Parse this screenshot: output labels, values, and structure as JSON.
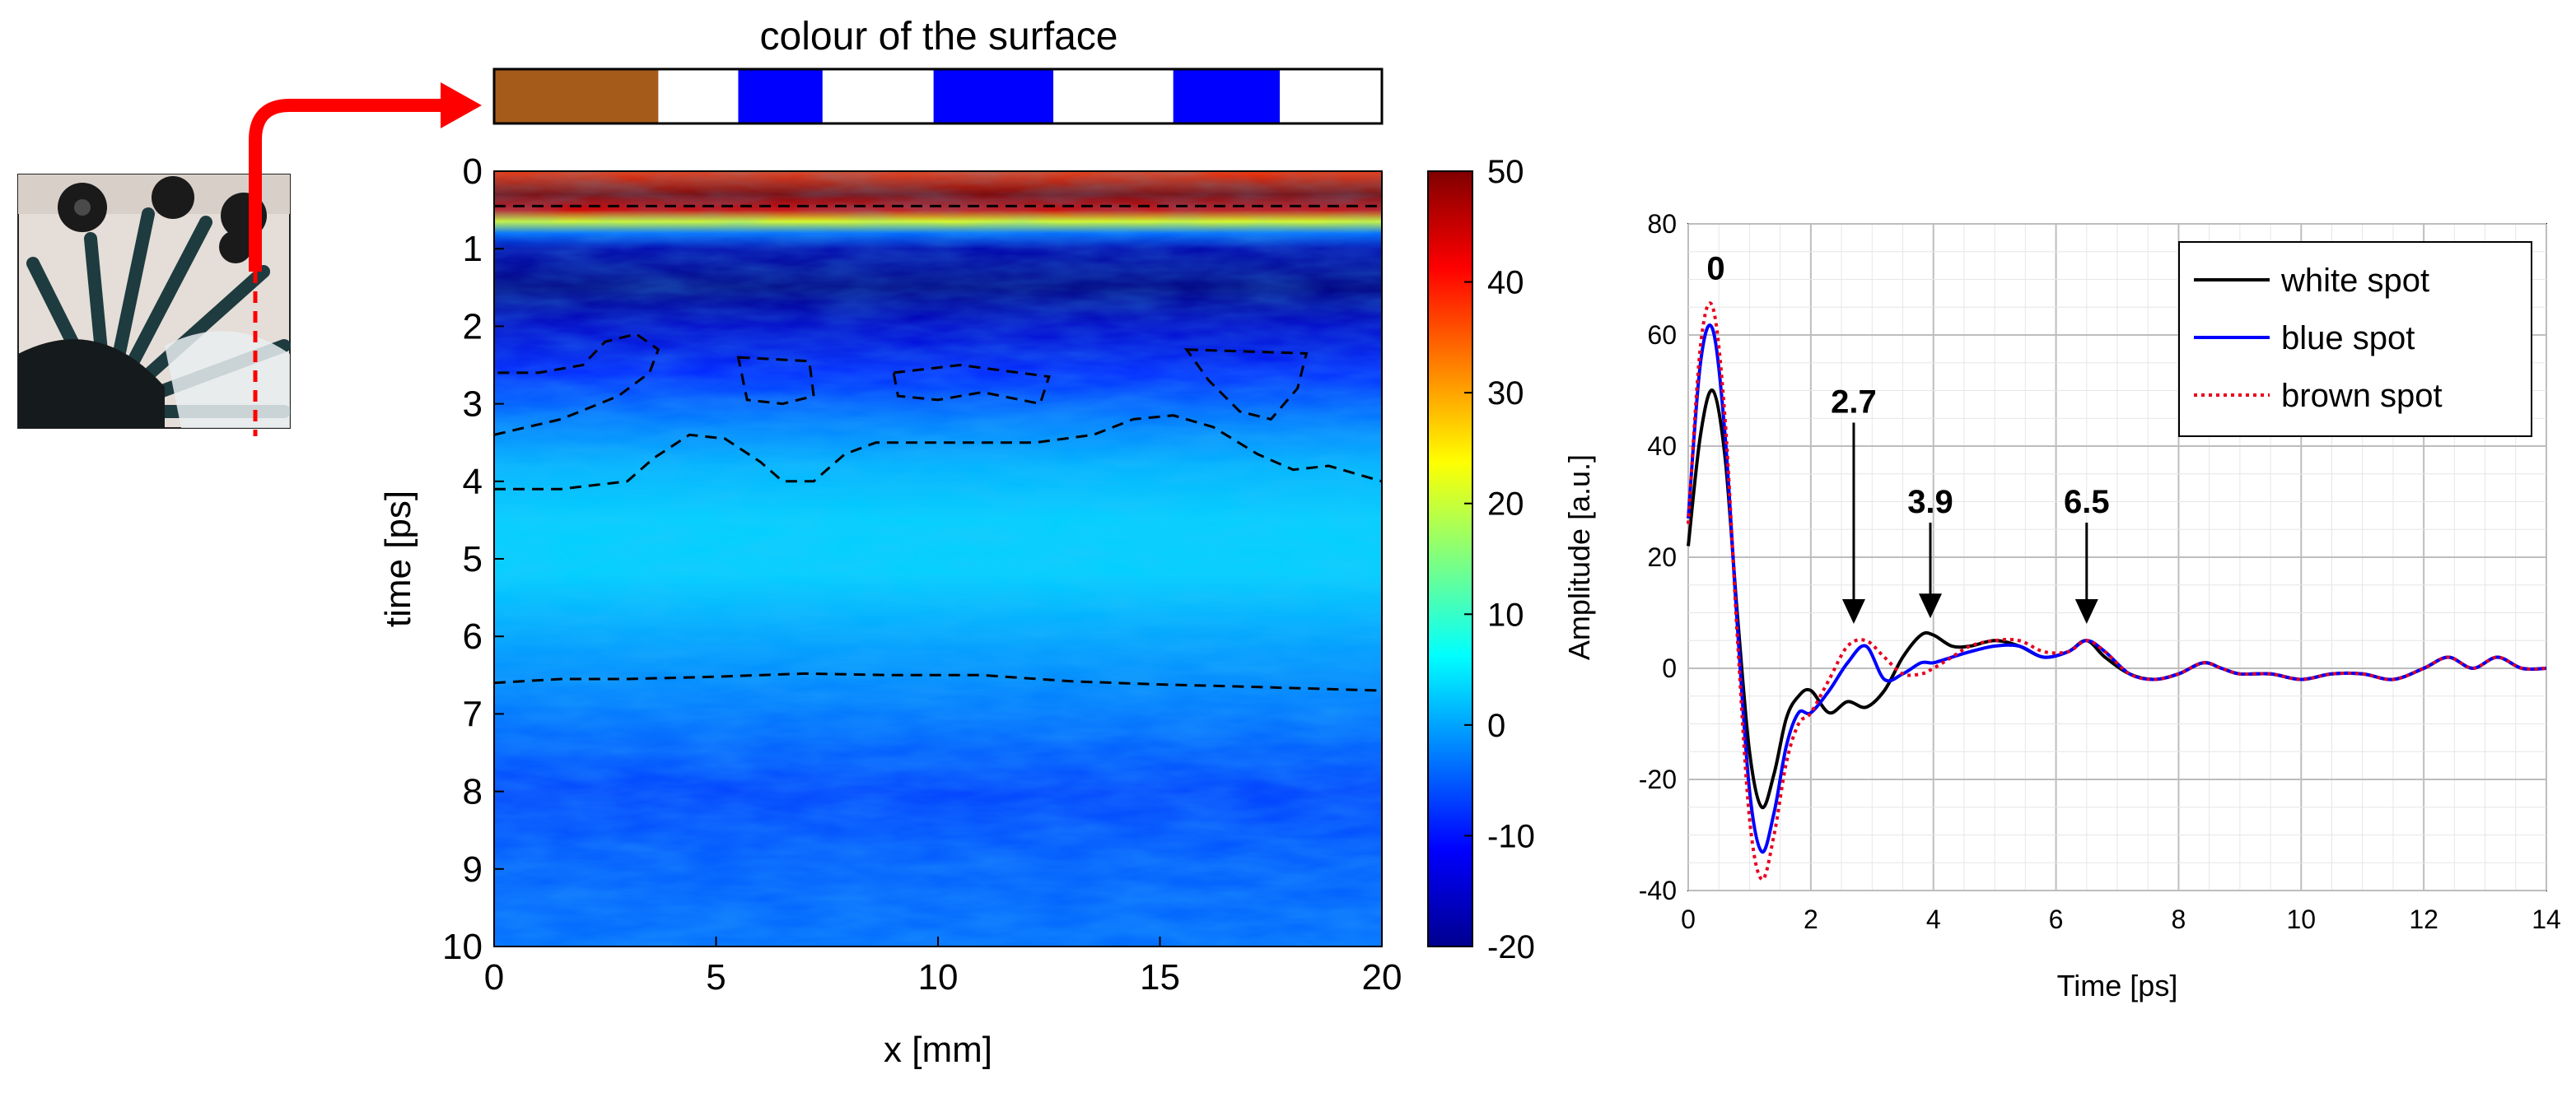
{
  "colors": {
    "brown": "#a55b1a",
    "blue": "#0000ff",
    "white": "#ffffff",
    "arrow_red": "#ff0000",
    "line_black": "#000000",
    "line_blue": "#0000ff",
    "line_red": "#e8001e"
  },
  "surface_bar": {
    "title": "colour of the surface",
    "segments": [
      {
        "name": "brown",
        "x0": 0,
        "x1": 3.7
      },
      {
        "name": "white",
        "x0": 3.7,
        "x1": 5.5
      },
      {
        "name": "blue",
        "x0": 5.5,
        "x1": 7.4
      },
      {
        "name": "white",
        "x0": 7.4,
        "x1": 9.9
      },
      {
        "name": "blue",
        "x0": 9.9,
        "x1": 12.6
      },
      {
        "name": "white",
        "x0": 12.6,
        "x1": 15.3
      },
      {
        "name": "blue",
        "x0": 15.3,
        "x1": 17.7
      },
      {
        "name": "white",
        "x0": 17.7,
        "x1": 20
      }
    ]
  },
  "chart_data": [
    {
      "type": "heatmap",
      "xlabel": "x [mm]",
      "ylabel": "time [ps]",
      "xlim": [
        0,
        20
      ],
      "ylim": [
        10,
        0
      ],
      "xticks": [
        "0",
        "5",
        "10",
        "15",
        "20"
      ],
      "yticks": [
        "0",
        "1",
        "2",
        "3",
        "4",
        "5",
        "6",
        "7",
        "8",
        "9",
        "10"
      ],
      "colorbar": {
        "min": -20,
        "max": 50,
        "ticks": [
          "50",
          "40",
          "30",
          "20",
          "10",
          "0",
          "-10",
          "-20"
        ],
        "colormap": "jet"
      },
      "mean_profile": [
        {
          "t": 0.0,
          "v": 38
        },
        {
          "t": 0.3,
          "v": 50
        },
        {
          "t": 0.5,
          "v": 44
        },
        {
          "t": 0.65,
          "v": 22
        },
        {
          "t": 0.8,
          "v": -4
        },
        {
          "t": 1.0,
          "v": -17
        },
        {
          "t": 1.5,
          "v": -20
        },
        {
          "t": 2.0,
          "v": -15
        },
        {
          "t": 2.6,
          "v": -9
        },
        {
          "t": 3.2,
          "v": -3
        },
        {
          "t": 3.8,
          "v": 1
        },
        {
          "t": 4.5,
          "v": 3
        },
        {
          "t": 5.2,
          "v": 3
        },
        {
          "t": 6.0,
          "v": 0
        },
        {
          "t": 6.6,
          "v": -2
        },
        {
          "t": 7.2,
          "v": -4
        },
        {
          "t": 8.0,
          "v": -7
        },
        {
          "t": 9.0,
          "v": -5
        },
        {
          "t": 10.0,
          "v": -4
        }
      ],
      "contours": [
        {
          "closed": false,
          "points": [
            [
              0,
              0.45
            ],
            [
              20,
              0.45
            ]
          ]
        },
        {
          "closed": false,
          "points": [
            [
              0,
              3.4
            ],
            [
              1.5,
              3.2
            ],
            [
              2.8,
              2.9
            ],
            [
              3.5,
              2.6
            ],
            [
              3.7,
              2.3
            ],
            [
              3.2,
              2.1
            ],
            [
              2.5,
              2.2
            ],
            [
              2.0,
              2.5
            ],
            [
              1.0,
              2.6
            ],
            [
              0,
              2.6
            ]
          ]
        },
        {
          "closed": true,
          "points": [
            [
              5.5,
              2.4
            ],
            [
              7.1,
              2.45
            ],
            [
              7.2,
              2.9
            ],
            [
              6.5,
              3.0
            ],
            [
              5.7,
              2.95
            ]
          ]
        },
        {
          "closed": true,
          "points": [
            [
              9.0,
              2.6
            ],
            [
              10.5,
              2.5
            ],
            [
              12.5,
              2.65
            ],
            [
              12.3,
              3.0
            ],
            [
              11.0,
              2.85
            ],
            [
              10.0,
              2.95
            ],
            [
              9.1,
              2.9
            ]
          ]
        },
        {
          "closed": true,
          "points": [
            [
              15.6,
              2.3
            ],
            [
              18.3,
              2.35
            ],
            [
              18.1,
              2.8
            ],
            [
              17.5,
              3.2
            ],
            [
              16.8,
              3.1
            ],
            [
              16.1,
              2.7
            ]
          ]
        },
        {
          "closed": false,
          "points": [
            [
              0,
              4.1
            ],
            [
              1.5,
              4.1
            ],
            [
              3.0,
              4.0
            ],
            [
              3.6,
              3.7
            ],
            [
              4.4,
              3.4
            ],
            [
              5.2,
              3.45
            ],
            [
              6.0,
              3.75
            ],
            [
              6.5,
              4.0
            ],
            [
              7.2,
              4.0
            ],
            [
              7.9,
              3.65
            ],
            [
              8.6,
              3.5
            ],
            [
              10.5,
              3.5
            ],
            [
              12.2,
              3.5
            ],
            [
              13.5,
              3.4
            ],
            [
              14.4,
              3.2
            ],
            [
              15.3,
              3.15
            ],
            [
              16.2,
              3.3
            ],
            [
              17.2,
              3.65
            ],
            [
              18.0,
              3.85
            ],
            [
              18.8,
              3.8
            ],
            [
              20,
              4.0
            ]
          ]
        },
        {
          "closed": false,
          "points": [
            [
              0,
              6.6
            ],
            [
              1.5,
              6.55
            ],
            [
              3,
              6.55
            ],
            [
              5,
              6.52
            ],
            [
              7,
              6.48
            ],
            [
              9,
              6.5
            ],
            [
              11,
              6.5
            ],
            [
              13,
              6.58
            ],
            [
              15,
              6.62
            ],
            [
              17,
              6.65
            ],
            [
              20,
              6.7
            ]
          ]
        }
      ]
    },
    {
      "type": "line",
      "xlabel": "Time [ps]",
      "ylabel": "Amplitude [a.u.]",
      "xlim": [
        0,
        14
      ],
      "ylim": [
        -40,
        80
      ],
      "xticks": [
        "0",
        "2",
        "4",
        "6",
        "8",
        "10",
        "12",
        "14"
      ],
      "yticks": [
        "80",
        "60",
        "40",
        "20",
        "0",
        "-20",
        "-40"
      ],
      "grid": true,
      "legend_position": "top-right",
      "series": [
        {
          "name": "white spot",
          "color": "#000000",
          "style": "solid",
          "x": [
            0,
            0.2,
            0.4,
            0.6,
            0.8,
            1.0,
            1.2,
            1.4,
            1.6,
            1.8,
            2.0,
            2.3,
            2.6,
            2.9,
            3.2,
            3.5,
            3.8,
            4.0,
            4.3,
            4.6,
            5.0,
            5.4,
            5.8,
            6.2,
            6.5,
            6.8,
            7.2,
            7.6,
            8.0,
            8.4,
            8.7,
            9.0,
            9.5,
            10.0,
            10.5,
            11.0,
            11.5,
            12.0,
            12.4,
            12.8,
            13.2,
            13.6,
            14.0
          ],
          "y": [
            22,
            42,
            50,
            38,
            10,
            -15,
            -25,
            -19,
            -9,
            -5,
            -4,
            -8,
            -6,
            -7,
            -4,
            2,
            6,
            6,
            4,
            4,
            5,
            4,
            2,
            3,
            5,
            2,
            -1,
            -2,
            -1,
            1,
            0,
            -1,
            -1,
            -2,
            -1,
            -1,
            -2,
            0,
            2,
            0,
            2,
            0,
            0
          ]
        },
        {
          "name": "blue spot",
          "color": "#0000ff",
          "style": "solid",
          "x": [
            0,
            0.2,
            0.4,
            0.6,
            0.8,
            1.0,
            1.2,
            1.4,
            1.6,
            1.8,
            2.0,
            2.3,
            2.6,
            2.9,
            3.2,
            3.5,
            3.8,
            4.0,
            4.3,
            4.6,
            5.0,
            5.4,
            5.8,
            6.2,
            6.5,
            6.8,
            7.2,
            7.6,
            8.0,
            8.4,
            8.7,
            9.0,
            9.5,
            10.0,
            10.5,
            11.0,
            11.5,
            12.0,
            12.4,
            12.8,
            13.2,
            13.6,
            14.0
          ],
          "y": [
            27,
            55,
            61,
            42,
            8,
            -22,
            -33,
            -26,
            -14,
            -8,
            -8,
            -4,
            1,
            4,
            -2,
            -1,
            1,
            1,
            2,
            3,
            4,
            4,
            2,
            3,
            5,
            3,
            -1,
            -2,
            -1,
            1,
            0,
            -1,
            -1,
            -2,
            -1,
            -1,
            -2,
            0,
            2,
            0,
            2,
            0,
            0
          ]
        },
        {
          "name": "brown spot",
          "color": "#e8001e",
          "style": "dotted",
          "x": [
            0,
            0.2,
            0.4,
            0.6,
            0.8,
            1.0,
            1.2,
            1.4,
            1.6,
            1.8,
            2.0,
            2.3,
            2.6,
            2.9,
            3.2,
            3.5,
            3.8,
            4.0,
            4.3,
            4.6,
            5.0,
            5.4,
            5.8,
            6.2,
            6.5,
            6.8,
            7.2,
            7.6,
            8.0,
            8.4,
            8.7,
            9.0,
            9.5,
            10.0,
            10.5,
            11.0,
            11.5,
            12.0,
            12.4,
            12.8,
            13.2,
            13.6,
            14.0
          ],
          "y": [
            26,
            58,
            65,
            45,
            6,
            -27,
            -38,
            -30,
            -17,
            -10,
            -8,
            -2,
            4,
            5,
            2,
            -1,
            -1,
            0,
            2,
            4,
            5,
            5,
            3,
            3,
            5,
            3,
            -1,
            -2,
            -1,
            1,
            0,
            -1,
            -1,
            -2,
            -1,
            -1,
            -2,
            0,
            2,
            0,
            2,
            0,
            0
          ]
        }
      ],
      "annotations": [
        {
          "text": "0",
          "x": 0.45,
          "y": 70
        },
        {
          "text": "2.7",
          "x": 2.7,
          "y": 46,
          "arrow_to_y": 8
        },
        {
          "text": "3.9",
          "x": 3.95,
          "y": 28,
          "arrow_to_y": 9
        },
        {
          "text": "6.5",
          "x": 6.5,
          "y": 28,
          "arrow_to_y": 8
        }
      ]
    }
  ]
}
